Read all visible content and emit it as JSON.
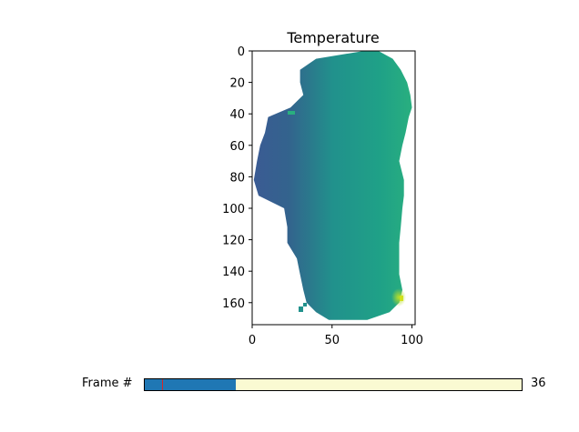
{
  "chart_data": {
    "type": "heatmap",
    "title": "Temperature",
    "xlabel": "",
    "ylabel": "",
    "x_ticks": [
      0,
      50,
      100
    ],
    "y_ticks": [
      0,
      20,
      40,
      60,
      80,
      100,
      120,
      140,
      160
    ],
    "xlim": [
      0,
      102
    ],
    "ylim": [
      174,
      0
    ],
    "colormap": "viridis",
    "grid": false,
    "mask_rows": [
      {
        "y": 0,
        "x0": 70,
        "x1": 79
      },
      {
        "y": 5,
        "x0": 40,
        "x1": 88
      },
      {
        "y": 12,
        "x0": 30,
        "x1": 93
      },
      {
        "y": 20,
        "x0": 30,
        "x1": 97
      },
      {
        "y": 28,
        "x0": 32,
        "x1": 99
      },
      {
        "y": 36,
        "x0": 24,
        "x1": 100
      },
      {
        "y": 42,
        "x0": 10,
        "x1": 98
      },
      {
        "y": 52,
        "x0": 8,
        "x1": 96
      },
      {
        "y": 60,
        "x0": 5,
        "x1": 94
      },
      {
        "y": 70,
        "x0": 3,
        "x1": 92
      },
      {
        "y": 82,
        "x0": 1,
        "x1": 95
      },
      {
        "y": 92,
        "x0": 4,
        "x1": 95
      },
      {
        "y": 100,
        "x0": 20,
        "x1": 94
      },
      {
        "y": 112,
        "x0": 22,
        "x1": 93
      },
      {
        "y": 122,
        "x0": 22,
        "x1": 92
      },
      {
        "y": 132,
        "x0": 28,
        "x1": 92
      },
      {
        "y": 142,
        "x0": 30,
        "x1": 92
      },
      {
        "y": 152,
        "x0": 32,
        "x1": 94
      },
      {
        "y": 160,
        "x0": 34,
        "x1": 92
      },
      {
        "y": 166,
        "x0": 40,
        "x1": 86
      },
      {
        "y": 171,
        "x0": 48,
        "x1": 72
      }
    ]
  },
  "slider": {
    "label": "Frame #",
    "value": "36",
    "min": 0,
    "max": 149,
    "current": 36,
    "initial": 7,
    "fill_color": "#1f77b4",
    "track_color": "#fafad2",
    "marker_color": "#d62728"
  }
}
